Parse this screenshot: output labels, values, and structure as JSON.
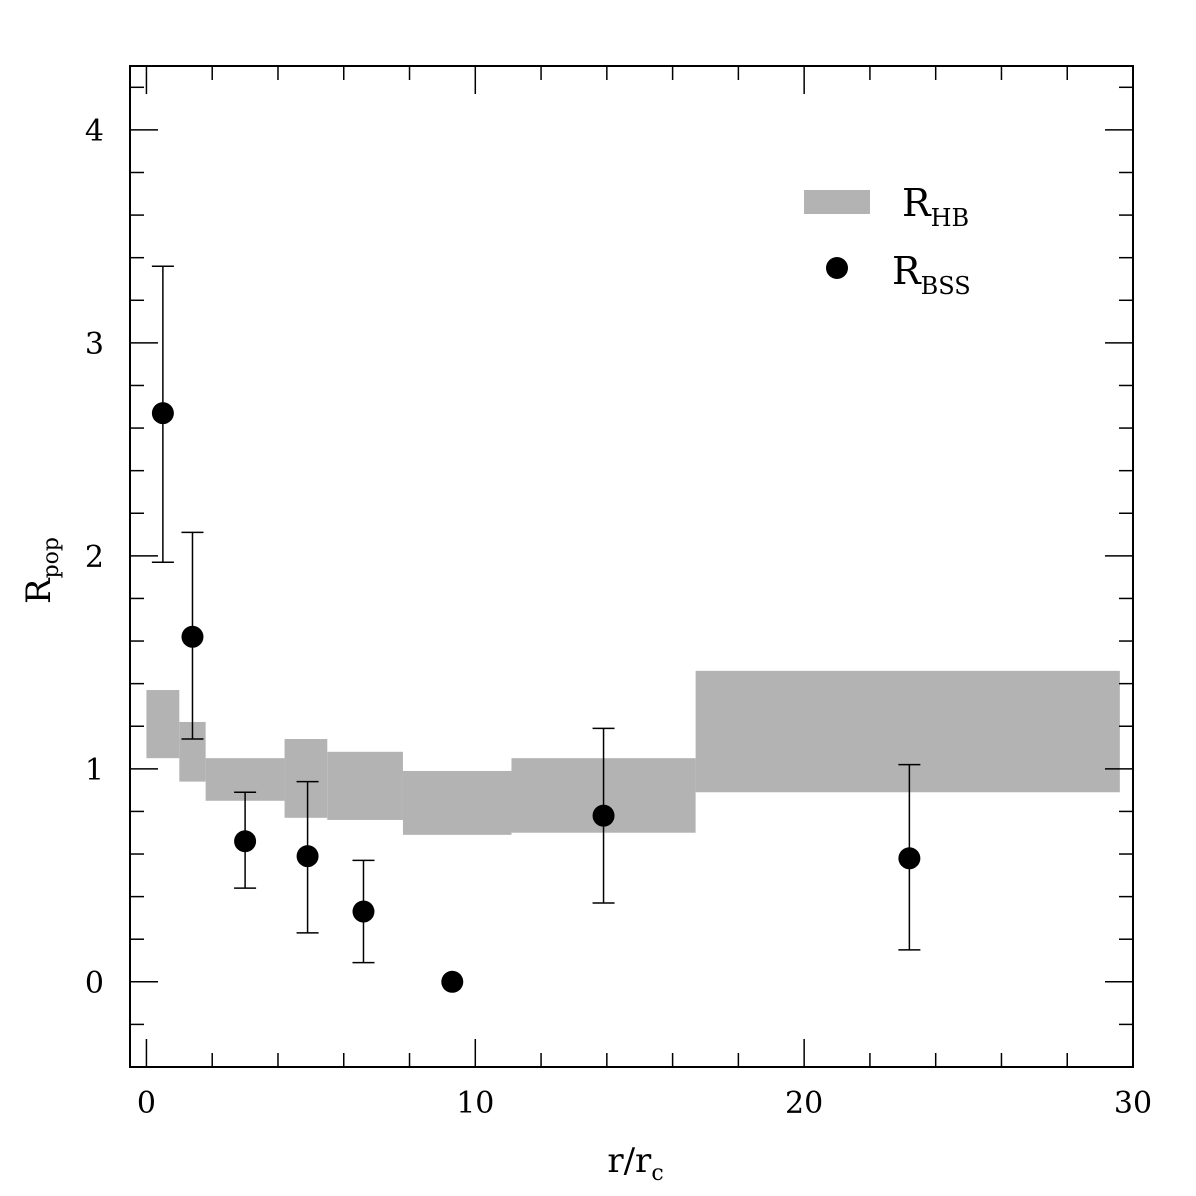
{
  "chart_data": {
    "type": "scatter",
    "title": "",
    "xlabel": {
      "main": "r/r",
      "sub": "c"
    },
    "ylabel": {
      "main": "R",
      "sub": "pop"
    },
    "xlim": [
      -0.5,
      30
    ],
    "ylim": [
      -0.4,
      4.3
    ],
    "xticks": [
      0,
      10,
      20,
      30
    ],
    "yticks": [
      0,
      1,
      2,
      3,
      4
    ],
    "legend": {
      "placement": "top-right",
      "items": [
        {
          "main": "R",
          "sub": "HB",
          "kind": "band"
        },
        {
          "main": "R",
          "sub": "BSS",
          "kind": "point"
        }
      ]
    },
    "colors": {
      "band": "#b3b3b3",
      "point": "#000000"
    },
    "series": [
      {
        "name": "R_HB",
        "kind": "band",
        "bins": [
          {
            "x0": 0.0,
            "x1": 1.0,
            "y0": 1.05,
            "y1": 1.37
          },
          {
            "x0": 1.0,
            "x1": 1.8,
            "y0": 0.94,
            "y1": 1.22
          },
          {
            "x0": 1.8,
            "x1": 4.2,
            "y0": 0.85,
            "y1": 1.05
          },
          {
            "x0": 4.2,
            "x1": 5.5,
            "y0": 0.77,
            "y1": 1.14
          },
          {
            "x0": 5.5,
            "x1": 7.8,
            "y0": 0.76,
            "y1": 1.08
          },
          {
            "x0": 7.8,
            "x1": 11.1,
            "y0": 0.69,
            "y1": 0.99
          },
          {
            "x0": 11.1,
            "x1": 16.7,
            "y0": 0.7,
            "y1": 1.05
          },
          {
            "x0": 16.7,
            "x1": 29.6,
            "y0": 0.89,
            "y1": 1.46
          }
        ]
      },
      {
        "name": "R_BSS",
        "kind": "points",
        "points": [
          {
            "x": 0.5,
            "y": 2.67,
            "ylo": 1.97,
            "yhi": 3.36
          },
          {
            "x": 1.4,
            "y": 1.62,
            "ylo": 1.14,
            "yhi": 2.11
          },
          {
            "x": 3.0,
            "y": 0.66,
            "ylo": 0.44,
            "yhi": 0.89
          },
          {
            "x": 4.9,
            "y": 0.59,
            "ylo": 0.23,
            "yhi": 0.94
          },
          {
            "x": 6.6,
            "y": 0.33,
            "ylo": 0.09,
            "yhi": 0.57
          },
          {
            "x": 9.3,
            "y": 0.0
          },
          {
            "x": 13.9,
            "y": 0.78,
            "ylo": 0.37,
            "yhi": 1.19
          },
          {
            "x": 23.2,
            "y": 0.58,
            "ylo": 0.15,
            "yhi": 1.02
          }
        ]
      }
    ]
  }
}
